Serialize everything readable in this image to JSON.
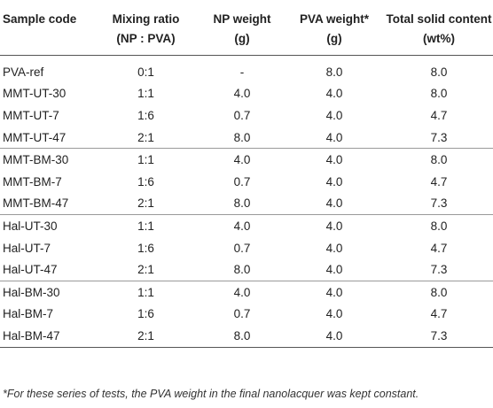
{
  "header": {
    "col1": "Sample code",
    "col2_line1": "Mixing ratio",
    "col2_line2": "(NP : PVA)",
    "col3_line1": "NP weight",
    "col3_line2": "(g)",
    "col4_line1": "PVA weight*",
    "col4_line2": "(g)",
    "col5_line1": "Total solid content",
    "col5_line2": "(wt%)"
  },
  "groups": [
    [
      {
        "code": "PVA-ref",
        "ratio": "0:1",
        "np": "-",
        "pva": "8.0",
        "total": "8.0"
      },
      {
        "code": "MMT-UT-30",
        "ratio": "1:1",
        "np": "4.0",
        "pva": "4.0",
        "total": "8.0"
      },
      {
        "code": "MMT-UT-7",
        "ratio": "1:6",
        "np": "0.7",
        "pva": "4.0",
        "total": "4.7"
      },
      {
        "code": "MMT-UT-47",
        "ratio": "2:1",
        "np": "8.0",
        "pva": "4.0",
        "total": "7.3"
      }
    ],
    [
      {
        "code": "MMT-BM-30",
        "ratio": "1:1",
        "np": "4.0",
        "pva": "4.0",
        "total": "8.0"
      },
      {
        "code": "MMT-BM-7",
        "ratio": "1:6",
        "np": "0.7",
        "pva": "4.0",
        "total": "4.7"
      },
      {
        "code": "MMT-BM-47",
        "ratio": "2:1",
        "np": "8.0",
        "pva": "4.0",
        "total": "7.3"
      }
    ],
    [
      {
        "code": "Hal-UT-30",
        "ratio": "1:1",
        "np": "4.0",
        "pva": "4.0",
        "total": "8.0"
      },
      {
        "code": "Hal-UT-7",
        "ratio": "1:6",
        "np": "0.7",
        "pva": "4.0",
        "total": "4.7"
      },
      {
        "code": "Hal-UT-47",
        "ratio": "2:1",
        "np": "8.0",
        "pva": "4.0",
        "total": "7.3"
      }
    ],
    [
      {
        "code": "Hal-BM-30",
        "ratio": "1:1",
        "np": "4.0",
        "pva": "4.0",
        "total": "8.0"
      },
      {
        "code": "Hal-BM-7",
        "ratio": "1:6",
        "np": "0.7",
        "pva": "4.0",
        "total": "4.7"
      },
      {
        "code": "Hal-BM-47",
        "ratio": "2:1",
        "np": "8.0",
        "pva": "4.0",
        "total": "7.3"
      }
    ]
  ],
  "footnote": "*For these series of tests, the PVA weight in the final nanolacquer was kept constant."
}
